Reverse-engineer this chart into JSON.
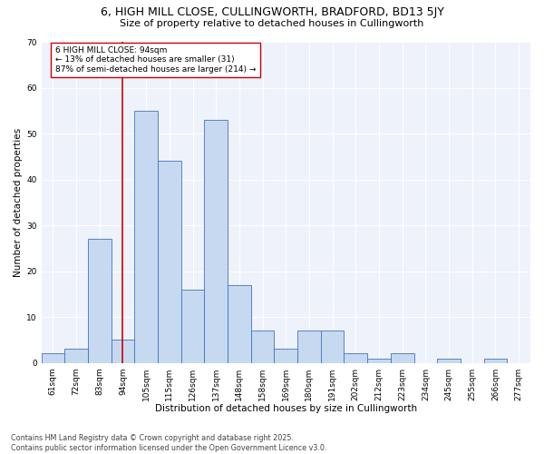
{
  "title1": "6, HIGH MILL CLOSE, CULLINGWORTH, BRADFORD, BD13 5JY",
  "title2": "Size of property relative to detached houses in Cullingworth",
  "xlabel": "Distribution of detached houses by size in Cullingworth",
  "ylabel": "Number of detached properties",
  "categories": [
    "61sqm",
    "72sqm",
    "83sqm",
    "94sqm",
    "105sqm",
    "115sqm",
    "126sqm",
    "137sqm",
    "148sqm",
    "158sqm",
    "169sqm",
    "180sqm",
    "191sqm",
    "202sqm",
    "212sqm",
    "223sqm",
    "234sqm",
    "245sqm",
    "255sqm",
    "266sqm",
    "277sqm"
  ],
  "values": [
    2,
    3,
    27,
    5,
    55,
    44,
    16,
    53,
    17,
    7,
    3,
    7,
    7,
    2,
    1,
    2,
    0,
    1,
    0,
    1,
    0
  ],
  "bar_color": "#c6d9f0",
  "bar_edge_color": "#4472c4",
  "bg_color": "#eef2fa",
  "grid_color": "#ffffff",
  "vline_x": 3,
  "vline_color": "#cc0000",
  "annotation_text": "6 HIGH MILL CLOSE: 94sqm\n← 13% of detached houses are smaller (31)\n87% of semi-detached houses are larger (214) →",
  "annotation_box_color": "#ffffff",
  "annotation_box_edge": "#cc0000",
  "ylim": [
    0,
    70
  ],
  "yticks": [
    0,
    10,
    20,
    30,
    40,
    50,
    60,
    70
  ],
  "footnote": "Contains HM Land Registry data © Crown copyright and database right 2025.\nContains public sector information licensed under the Open Government Licence v3.0.",
  "title_fontsize": 9,
  "subtitle_fontsize": 8,
  "axis_label_fontsize": 7.5,
  "tick_fontsize": 6.5,
  "annotation_fontsize": 6.5,
  "footnote_fontsize": 5.8
}
